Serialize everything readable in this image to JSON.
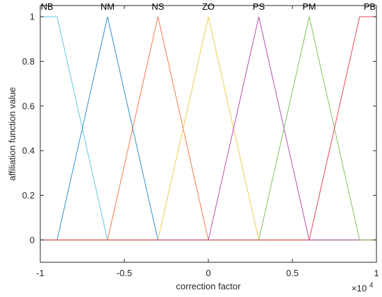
{
  "chart_data": {
    "type": "line",
    "title": "",
    "xlabel": "correction factor",
    "ylabel": "affiliation function value",
    "x_multiplier_label": "×10",
    "x_multiplier_exponent": "4",
    "xlim": [
      -1,
      1
    ],
    "ylim": [
      -0.1,
      1.05
    ],
    "xticks": [
      -1,
      -0.5,
      0,
      0.5,
      1
    ],
    "xtick_labels": [
      "-1",
      "-0.5",
      "0",
      "0.5",
      "1"
    ],
    "yticks": [
      0,
      0.2,
      0.4,
      0.6,
      0.8,
      1
    ],
    "ytick_labels": [
      "0",
      "0.2",
      "0.4",
      "0.6",
      "0.8",
      "1"
    ],
    "grid": false,
    "series": [
      {
        "name": "NB",
        "color": "#5ec8e8",
        "x": [
          -1,
          -0.9,
          -0.6,
          1
        ],
        "y": [
          1,
          1,
          0,
          0
        ]
      },
      {
        "name": "NM",
        "color": "#2e8fc9",
        "x": [
          -1,
          -0.9,
          -0.6,
          -0.3,
          1
        ],
        "y": [
          0,
          0,
          1,
          0,
          0
        ]
      },
      {
        "name": "NS",
        "color": "#ef7a4e",
        "x": [
          -1,
          -0.6,
          -0.3,
          0,
          1
        ],
        "y": [
          0,
          0,
          1,
          0,
          0
        ]
      },
      {
        "name": "ZO",
        "color": "#f2c94c",
        "x": [
          -1,
          -0.3,
          0,
          0.3,
          1
        ],
        "y": [
          0,
          0,
          1,
          0,
          0
        ]
      },
      {
        "name": "PS",
        "color": "#b04fb0",
        "x": [
          -1,
          0,
          0.3,
          0.6,
          1
        ],
        "y": [
          0,
          0,
          1,
          0,
          0
        ]
      },
      {
        "name": "PM",
        "color": "#7dc35b",
        "x": [
          -1,
          0.3,
          0.6,
          0.9,
          1
        ],
        "y": [
          0,
          0,
          1,
          0,
          0
        ]
      },
      {
        "name": "PB",
        "color": "#e8455a",
        "x": [
          -1,
          0.6,
          0.9,
          1
        ],
        "y": [
          0,
          0,
          1,
          1
        ]
      }
    ],
    "set_labels": [
      {
        "text": "NB",
        "x": -0.96
      },
      {
        "text": "NM",
        "x": -0.6
      },
      {
        "text": "NS",
        "x": -0.3
      },
      {
        "text": "ZO",
        "x": 0
      },
      {
        "text": "PS",
        "x": 0.3
      },
      {
        "text": "PM",
        "x": 0.6
      },
      {
        "text": "PB",
        "x": 0.96
      }
    ]
  }
}
